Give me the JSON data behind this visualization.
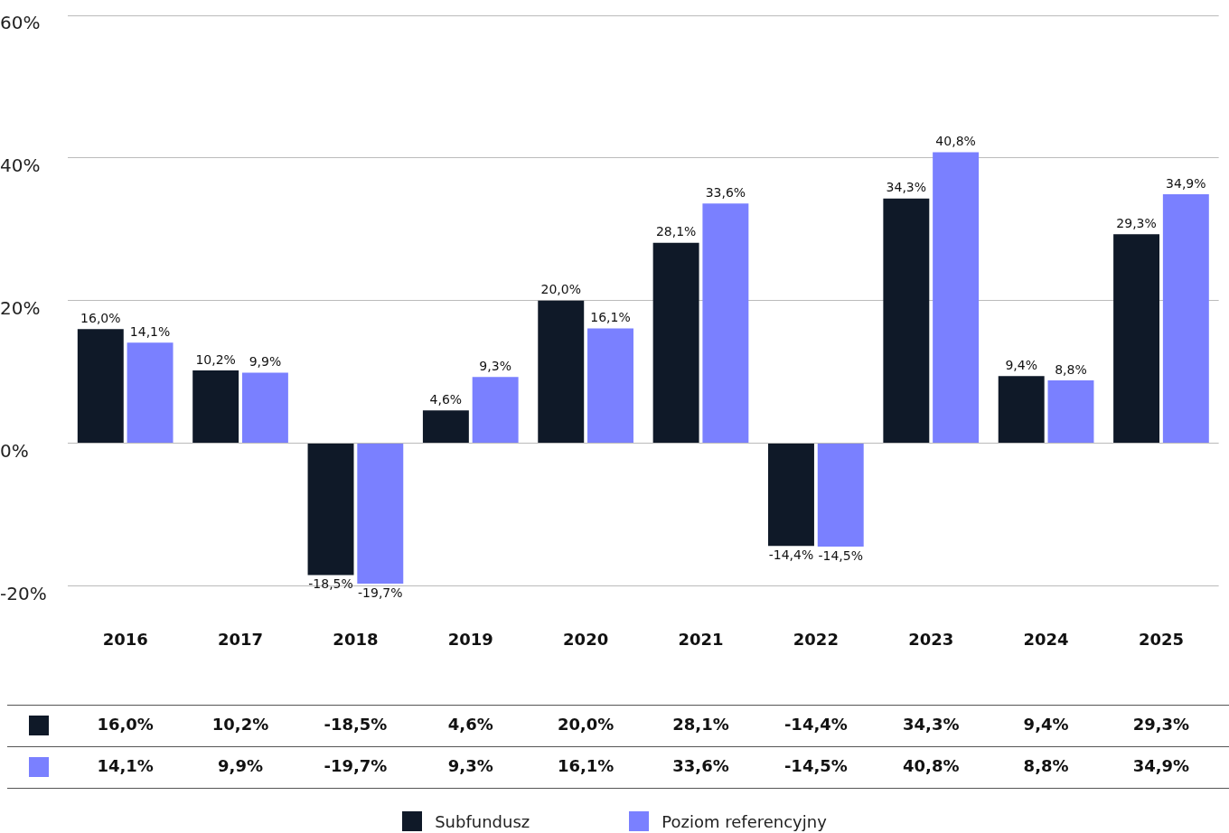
{
  "chart_data": {
    "type": "bar",
    "categories": [
      "2016",
      "2017",
      "2018",
      "2019",
      "2020",
      "2021",
      "2022",
      "2023",
      "2024",
      "2025"
    ],
    "series": [
      {
        "name": "Subfundusz",
        "color": "#0f1928",
        "values": [
          16.0,
          10.2,
          -18.5,
          4.6,
          20.0,
          28.1,
          -14.4,
          34.3,
          9.4,
          29.3
        ],
        "value_labels": [
          "16,0%",
          "10,2%",
          "-18,5%",
          "4,6%",
          "20,0%",
          "28,1%",
          "-14,4%",
          "34,3%",
          "9,4%",
          "29,3%"
        ]
      },
      {
        "name": "Poziom referencyjny",
        "color": "#7a80ff",
        "values": [
          14.1,
          9.9,
          -19.7,
          9.3,
          16.1,
          33.6,
          -14.5,
          40.8,
          8.8,
          34.9
        ],
        "value_labels": [
          "14,1%",
          "9,9%",
          "-19,7%",
          "9,3%",
          "16,1%",
          "33,6%",
          "-14,5%",
          "40,8%",
          "8,8%",
          "34,9%"
        ]
      }
    ],
    "ylim": [
      -20,
      60
    ],
    "yticks": [
      {
        "value": -20,
        "label": "-20%"
      },
      {
        "value": 0,
        "label": "0%"
      },
      {
        "value": 20,
        "label": "20%"
      },
      {
        "value": 40,
        "label": "40%"
      },
      {
        "value": 60,
        "label": "60%"
      }
    ],
    "grid": "y",
    "legend": "bottom"
  }
}
